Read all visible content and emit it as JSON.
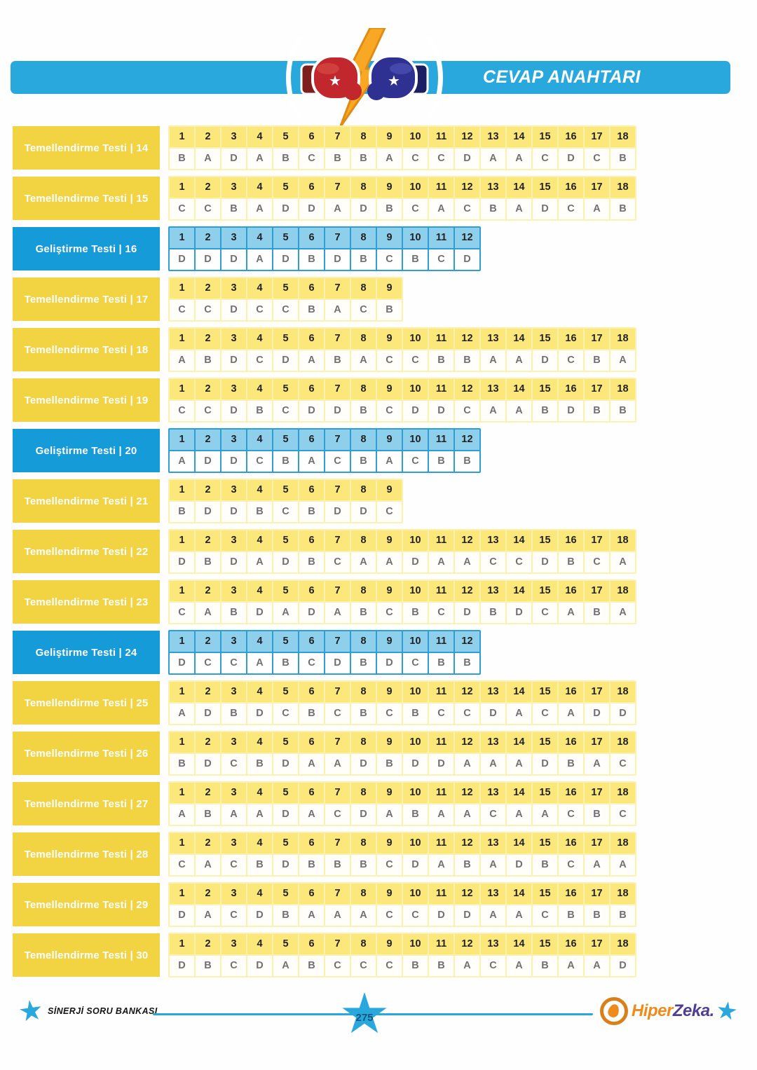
{
  "header": {
    "title": "CEVAP ANAHTARI"
  },
  "icons": {
    "header_icon": "boxing-gloves-lightning-icon",
    "star_icon": "★",
    "logo_icon": "egg-in-circle-icon"
  },
  "colors": {
    "header_blue": "#29a8dd",
    "label_yellow": "#f2d342",
    "label_blue": "#159bd7",
    "cell_yellow": "#fbe77a",
    "cell_blue": "#8ecfec",
    "answer_text": "#707174",
    "lightning": "#f9a825",
    "glove_red": "#c1272d",
    "glove_blue": "#2e3192",
    "logo_orange": "#ef8b1c",
    "logo_purple": "#503e91"
  },
  "tests": [
    {
      "label": "Temellendirme Testi | 14",
      "style": "yellow",
      "question_numbers": [
        "1",
        "2",
        "3",
        "4",
        "5",
        "6",
        "7",
        "8",
        "9",
        "10",
        "11",
        "12",
        "13",
        "14",
        "15",
        "16",
        "17",
        "18"
      ],
      "answers": [
        "B",
        "A",
        "D",
        "A",
        "B",
        "C",
        "B",
        "B",
        "A",
        "C",
        "C",
        "D",
        "A",
        "A",
        "C",
        "D",
        "C",
        "B"
      ]
    },
    {
      "label": "Temellendirme Testi | 15",
      "style": "yellow",
      "question_numbers": [
        "1",
        "2",
        "3",
        "4",
        "5",
        "6",
        "7",
        "8",
        "9",
        "10",
        "11",
        "12",
        "13",
        "14",
        "15",
        "16",
        "17",
        "18"
      ],
      "answers": [
        "C",
        "C",
        "B",
        "A",
        "D",
        "D",
        "A",
        "D",
        "B",
        "C",
        "A",
        "C",
        "B",
        "A",
        "D",
        "C",
        "A",
        "B"
      ]
    },
    {
      "label": "Geliştirme Testi | 16",
      "style": "blue",
      "question_numbers": [
        "1",
        "2",
        "3",
        "4",
        "5",
        "6",
        "7",
        "8",
        "9",
        "10",
        "11",
        "12"
      ],
      "answers": [
        "D",
        "D",
        "D",
        "A",
        "D",
        "B",
        "D",
        "B",
        "C",
        "B",
        "C",
        "D"
      ]
    },
    {
      "label": "Temellendirme Testi | 17",
      "style": "yellow",
      "question_numbers": [
        "1",
        "2",
        "3",
        "4",
        "5",
        "6",
        "7",
        "8",
        "9"
      ],
      "answers": [
        "C",
        "C",
        "D",
        "C",
        "C",
        "B",
        "A",
        "C",
        "B"
      ]
    },
    {
      "label": "Temellendirme Testi | 18",
      "style": "yellow",
      "question_numbers": [
        "1",
        "2",
        "3",
        "4",
        "5",
        "6",
        "7",
        "8",
        "9",
        "10",
        "11",
        "12",
        "13",
        "14",
        "15",
        "16",
        "17",
        "18"
      ],
      "answers": [
        "A",
        "B",
        "D",
        "C",
        "D",
        "A",
        "B",
        "A",
        "C",
        "C",
        "B",
        "B",
        "A",
        "A",
        "D",
        "C",
        "B",
        "A"
      ]
    },
    {
      "label": "Temellendirme Testi | 19",
      "style": "yellow",
      "question_numbers": [
        "1",
        "2",
        "3",
        "4",
        "5",
        "6",
        "7",
        "8",
        "9",
        "10",
        "11",
        "12",
        "13",
        "14",
        "15",
        "16",
        "17",
        "18"
      ],
      "answers": [
        "C",
        "C",
        "D",
        "B",
        "C",
        "D",
        "D",
        "B",
        "C",
        "D",
        "D",
        "C",
        "A",
        "A",
        "B",
        "D",
        "B",
        "B"
      ]
    },
    {
      "label": "Geliştirme Testi | 20",
      "style": "blue",
      "question_numbers": [
        "1",
        "2",
        "3",
        "4",
        "5",
        "6",
        "7",
        "8",
        "9",
        "10",
        "11",
        "12"
      ],
      "answers": [
        "A",
        "D",
        "D",
        "C",
        "B",
        "A",
        "C",
        "B",
        "A",
        "C",
        "B",
        "B"
      ]
    },
    {
      "label": "Temellendirme Testi | 21",
      "style": "yellow",
      "question_numbers": [
        "1",
        "2",
        "3",
        "4",
        "5",
        "6",
        "7",
        "8",
        "9"
      ],
      "answers": [
        "B",
        "D",
        "D",
        "B",
        "C",
        "B",
        "D",
        "D",
        "C"
      ]
    },
    {
      "label": "Temellendirme Testi | 22",
      "style": "yellow",
      "question_numbers": [
        "1",
        "2",
        "3",
        "4",
        "5",
        "6",
        "7",
        "8",
        "9",
        "10",
        "11",
        "12",
        "13",
        "14",
        "15",
        "16",
        "17",
        "18"
      ],
      "answers": [
        "D",
        "B",
        "D",
        "A",
        "D",
        "B",
        "C",
        "A",
        "A",
        "D",
        "A",
        "A",
        "C",
        "C",
        "D",
        "B",
        "C",
        "A"
      ]
    },
    {
      "label": "Temellendirme Testi | 23",
      "style": "yellow",
      "question_numbers": [
        "1",
        "2",
        "3",
        "4",
        "5",
        "6",
        "7",
        "8",
        "9",
        "10",
        "11",
        "12",
        "13",
        "14",
        "15",
        "16",
        "17",
        "18"
      ],
      "answers": [
        "C",
        "A",
        "B",
        "D",
        "A",
        "D",
        "A",
        "B",
        "C",
        "B",
        "C",
        "D",
        "B",
        "D",
        "C",
        "A",
        "B",
        "A"
      ]
    },
    {
      "label": "Geliştirme Testi | 24",
      "style": "blue",
      "question_numbers": [
        "1",
        "2",
        "3",
        "4",
        "5",
        "6",
        "7",
        "8",
        "9",
        "10",
        "11",
        "12"
      ],
      "answers": [
        "D",
        "C",
        "C",
        "A",
        "B",
        "C",
        "D",
        "B",
        "D",
        "C",
        "B",
        "B"
      ]
    },
    {
      "label": "Temellendirme Testi | 25",
      "style": "yellow",
      "question_numbers": [
        "1",
        "2",
        "3",
        "4",
        "5",
        "6",
        "7",
        "8",
        "9",
        "10",
        "11",
        "12",
        "13",
        "14",
        "15",
        "16",
        "17",
        "18"
      ],
      "answers": [
        "A",
        "D",
        "B",
        "D",
        "C",
        "B",
        "C",
        "B",
        "C",
        "B",
        "C",
        "C",
        "D",
        "A",
        "C",
        "A",
        "D",
        "D"
      ]
    },
    {
      "label": "Temellendirme Testi | 26",
      "style": "yellow",
      "question_numbers": [
        "1",
        "2",
        "3",
        "4",
        "5",
        "6",
        "7",
        "8",
        "9",
        "10",
        "11",
        "12",
        "13",
        "14",
        "15",
        "16",
        "17",
        "18"
      ],
      "answers": [
        "B",
        "D",
        "C",
        "B",
        "D",
        "A",
        "A",
        "D",
        "B",
        "D",
        "D",
        "A",
        "A",
        "A",
        "D",
        "B",
        "A",
        "C"
      ]
    },
    {
      "label": "Temellendirme Testi | 27",
      "style": "yellow",
      "question_numbers": [
        "1",
        "2",
        "3",
        "4",
        "5",
        "6",
        "7",
        "8",
        "9",
        "10",
        "11",
        "12",
        "13",
        "14",
        "15",
        "16",
        "17",
        "18"
      ],
      "answers": [
        "A",
        "B",
        "A",
        "A",
        "D",
        "A",
        "C",
        "D",
        "A",
        "B",
        "A",
        "A",
        "C",
        "A",
        "A",
        "C",
        "B",
        "C"
      ]
    },
    {
      "label": "Temellendirme Testi | 28",
      "style": "yellow",
      "question_numbers": [
        "1",
        "2",
        "3",
        "4",
        "5",
        "6",
        "7",
        "8",
        "9",
        "10",
        "11",
        "12",
        "13",
        "14",
        "15",
        "16",
        "17",
        "18"
      ],
      "answers": [
        "C",
        "A",
        "C",
        "B",
        "D",
        "B",
        "B",
        "B",
        "C",
        "D",
        "A",
        "B",
        "A",
        "D",
        "B",
        "C",
        "A",
        "A"
      ]
    },
    {
      "label": "Temellendirme Testi | 29",
      "style": "yellow",
      "question_numbers": [
        "1",
        "2",
        "3",
        "4",
        "5",
        "6",
        "7",
        "8",
        "9",
        "10",
        "11",
        "12",
        "13",
        "14",
        "15",
        "16",
        "17",
        "18"
      ],
      "answers": [
        "D",
        "A",
        "C",
        "D",
        "B",
        "A",
        "A",
        "A",
        "C",
        "C",
        "D",
        "D",
        "A",
        "A",
        "C",
        "B",
        "B",
        "B"
      ]
    },
    {
      "label": "Temellendirme Testi | 30",
      "style": "yellow",
      "question_numbers": [
        "1",
        "2",
        "3",
        "4",
        "5",
        "6",
        "7",
        "8",
        "9",
        "10",
        "11",
        "12",
        "13",
        "14",
        "15",
        "16",
        "17",
        "18"
      ],
      "answers": [
        "D",
        "B",
        "C",
        "D",
        "A",
        "B",
        "C",
        "C",
        "C",
        "B",
        "B",
        "A",
        "C",
        "A",
        "B",
        "A",
        "A",
        "D"
      ]
    }
  ],
  "footer": {
    "brand": "SİNERJİ SORU BANKASI",
    "page_number": "275",
    "logo_text_1": "Hiper",
    "logo_text_2": "Zeka."
  }
}
